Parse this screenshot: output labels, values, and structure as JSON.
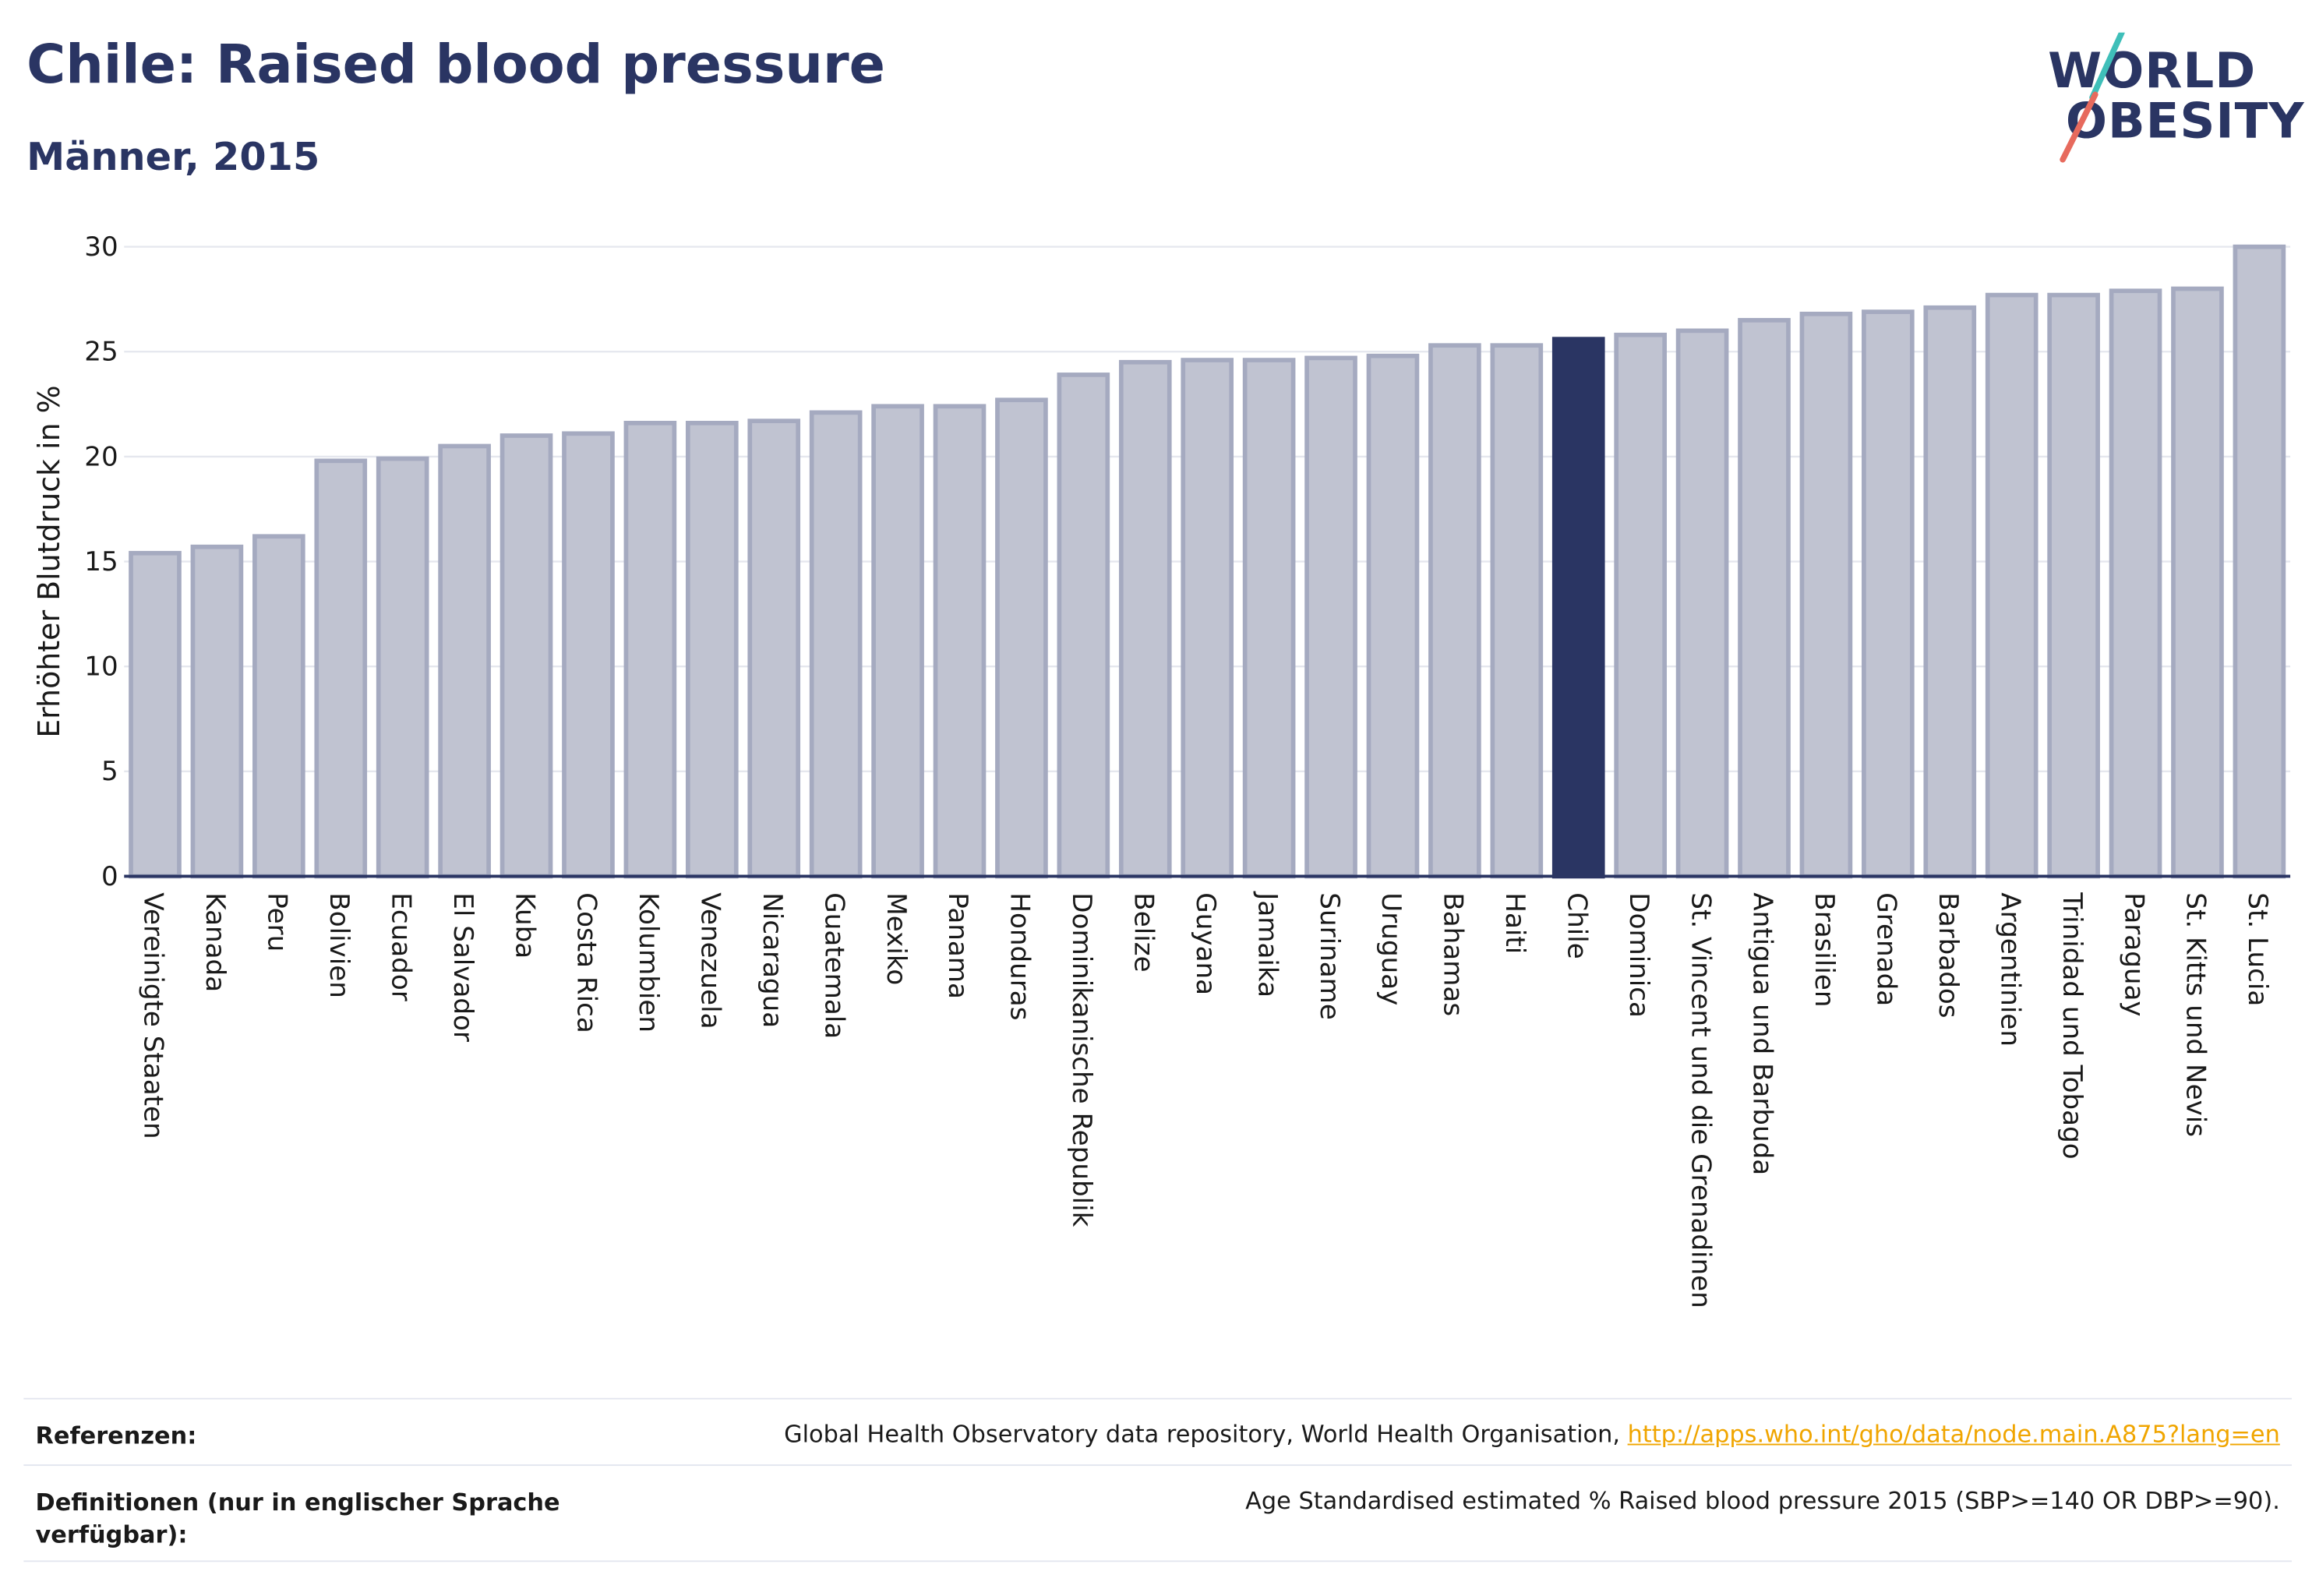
{
  "header": {
    "title": "Chile: Raised blood pressure",
    "subtitle": "Männer, 2015"
  },
  "logo": {
    "line1": "WORLD",
    "line2": "OBESITY",
    "slash_colors": [
      "#3fbfb9",
      "#e76a5d"
    ]
  },
  "colors": {
    "bar_fill": "#c0c3d1",
    "bar_stroke": "#a5aac0",
    "highlight_fill": "#2a3563",
    "axis_text": "#1a1a1a",
    "grid": "#e5e7ee"
  },
  "chart_data": {
    "type": "bar",
    "title": "Chile: Raised blood pressure",
    "subtitle": "Männer, 2015",
    "xlabel": "",
    "ylabel": "Erhöhter Blutdruck in %",
    "ylim": [
      0,
      30
    ],
    "yticks": [
      0,
      5,
      10,
      15,
      20,
      25,
      30
    ],
    "grid": true,
    "highlight": "Chile",
    "categories": [
      "Vereinigte Staaten",
      "Kanada",
      "Peru",
      "Bolivien",
      "Ecuador",
      "El Salvador",
      "Kuba",
      "Costa Rica",
      "Kolumbien",
      "Venezuela",
      "Nicaragua",
      "Guatemala",
      "Mexiko",
      "Panama",
      "Honduras",
      "Dominikanische Republik",
      "Belize",
      "Guyana",
      "Jamaika",
      "Suriname",
      "Uruguay",
      "Bahamas",
      "Haiti",
      "Chile",
      "Dominica",
      "St. Vincent und die Grenadinen",
      "Antigua und Barbuda",
      "Brasilien",
      "Grenada",
      "Barbados",
      "Argentinien",
      "Trinidad und Tobago",
      "Paraguay",
      "St. Kitts und Nevis",
      "St. Lucia"
    ],
    "values": [
      15.4,
      15.7,
      16.2,
      19.8,
      19.9,
      20.5,
      21.0,
      21.1,
      21.6,
      21.6,
      21.7,
      22.1,
      22.4,
      22.4,
      22.7,
      23.9,
      24.5,
      24.6,
      24.6,
      24.7,
      24.8,
      25.3,
      25.3,
      25.6,
      25.8,
      26.0,
      26.5,
      26.8,
      26.9,
      27.1,
      27.7,
      27.7,
      27.9,
      28.0,
      30.0
    ]
  },
  "references": {
    "refs_label": "Referenzen:",
    "refs_text": "Global Health Observatory data repository, World Health Organisation, ",
    "refs_link": "http://apps.who.int/gho/data/node.main.A875?lang=en",
    "defs_label": "Definitionen (nur in englischer Sprache verfügbar):",
    "defs_text": "Age Standardised estimated % Raised blood pressure 2015 (SBP>=140 OR DBP>=90)."
  }
}
